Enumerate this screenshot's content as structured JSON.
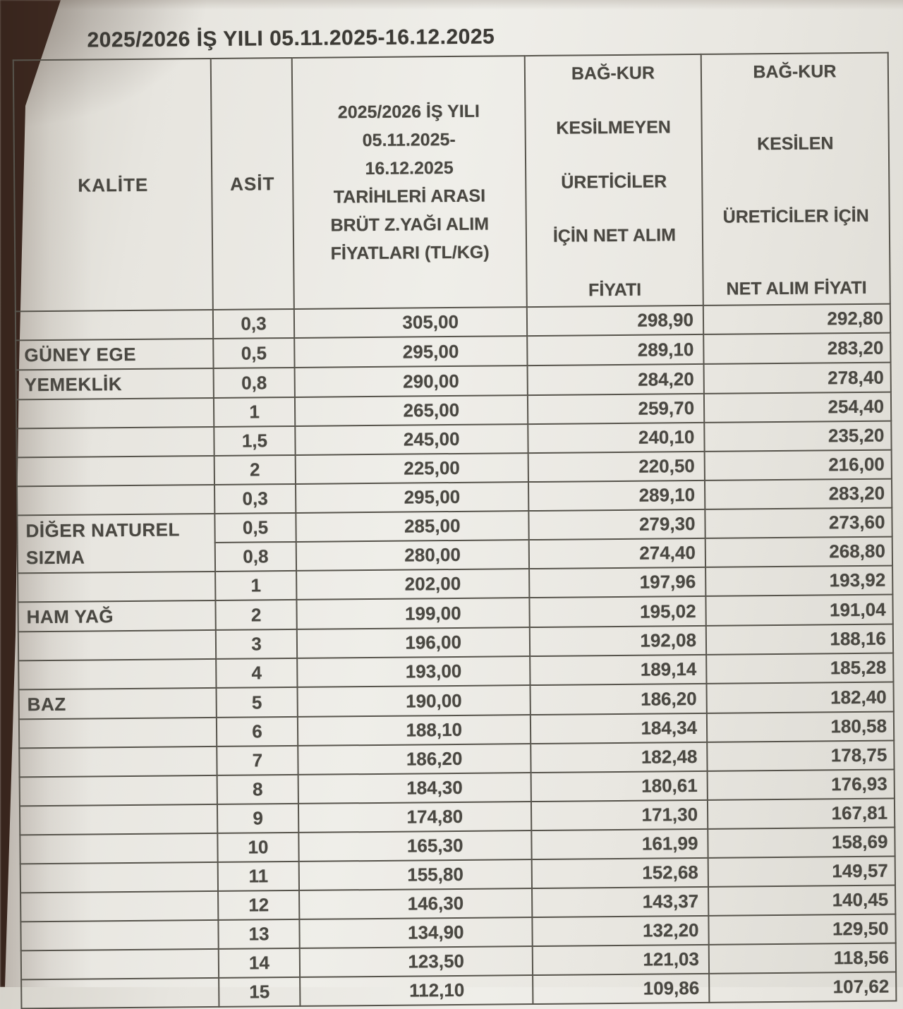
{
  "document": {
    "title": "2025/2026 İŞ YILI 05.11.2025-16.12.2025"
  },
  "table": {
    "headers": {
      "kalite": "KALİTE",
      "asit": "ASİT",
      "gross_lines": [
        "2025/2026 İŞ YILI",
        "05.11.2025-",
        "16.12.2025",
        "TARİHLERİ ARASI",
        "BRÜT Z.YAĞI ALIM",
        "FİYATLARI (TL/KG)"
      ],
      "net_kesilmeyen_lines": [
        "BAĞ-KUR",
        "KESİLMEYEN",
        "ÜRETİCİLER",
        "İÇİN NET ALIM",
        "FİYATI"
      ],
      "net_kesilen_lines": [
        "BAĞ-KUR",
        "KESİLEN",
        "ÜRETİCİLER İÇİN",
        "NET ALIM FİYATI"
      ]
    },
    "rows": [
      {
        "kalite": "",
        "asit": "0,3",
        "gross": "305,00",
        "net_kesilmeyen": "298,90",
        "net_kesilen": "292,80"
      },
      {
        "kalite": "GÜNEY EGE",
        "asit": "0,5",
        "gross": "295,00",
        "net_kesilmeyen": "289,10",
        "net_kesilen": "283,20"
      },
      {
        "kalite": "YEMEKLİK",
        "asit": "0,8",
        "gross": "290,00",
        "net_kesilmeyen": "284,20",
        "net_kesilen": "278,40"
      },
      {
        "kalite": "",
        "asit": "1",
        "gross": "265,00",
        "net_kesilmeyen": "259,70",
        "net_kesilen": "254,40"
      },
      {
        "kalite": "",
        "asit": "1,5",
        "gross": "245,00",
        "net_kesilmeyen": "240,10",
        "net_kesilen": "235,20"
      },
      {
        "kalite": "",
        "asit": "2",
        "gross": "225,00",
        "net_kesilmeyen": "220,50",
        "net_kesilen": "216,00"
      },
      {
        "kalite": "",
        "asit": "0,3",
        "gross": "295,00",
        "net_kesilmeyen": "289,10",
        "net_kesilen": "283,20"
      },
      {
        "kalite": "DİĞER NATUREL\nSIZMA",
        "kalite_rowspan": 2,
        "asit": "0,5",
        "gross": "285,00",
        "net_kesilmeyen": "279,30",
        "net_kesilen": "273,60"
      },
      {
        "kalite_skip": true,
        "asit": "0,8",
        "gross": "280,00",
        "net_kesilmeyen": "274,40",
        "net_kesilen": "268,80"
      },
      {
        "kalite": "",
        "asit": "1",
        "gross": "202,00",
        "net_kesilmeyen": "197,96",
        "net_kesilen": "193,92"
      },
      {
        "kalite": "HAM YAĞ",
        "asit": "2",
        "gross": "199,00",
        "net_kesilmeyen": "195,02",
        "net_kesilen": "191,04"
      },
      {
        "kalite": "",
        "asit": "3",
        "gross": "196,00",
        "net_kesilmeyen": "192,08",
        "net_kesilen": "188,16"
      },
      {
        "kalite": "",
        "asit": "4",
        "gross": "193,00",
        "net_kesilmeyen": "189,14",
        "net_kesilen": "185,28"
      },
      {
        "kalite": "BAZ",
        "asit": "5",
        "gross": "190,00",
        "net_kesilmeyen": "186,20",
        "net_kesilen": "182,40"
      },
      {
        "kalite": "",
        "asit": "6",
        "gross": "188,10",
        "net_kesilmeyen": "184,34",
        "net_kesilen": "180,58"
      },
      {
        "kalite": "",
        "asit": "7",
        "gross": "186,20",
        "net_kesilmeyen": "182,48",
        "net_kesilen": "178,75"
      },
      {
        "kalite": "",
        "asit": "8",
        "gross": "184,30",
        "net_kesilmeyen": "180,61",
        "net_kesilen": "176,93"
      },
      {
        "kalite": "",
        "asit": "9",
        "gross": "174,80",
        "net_kesilmeyen": "171,30",
        "net_kesilen": "167,81"
      },
      {
        "kalite": "",
        "asit": "10",
        "gross": "165,30",
        "net_kesilmeyen": "161,99",
        "net_kesilen": "158,69"
      },
      {
        "kalite": "",
        "asit": "11",
        "gross": "155,80",
        "net_kesilmeyen": "152,68",
        "net_kesilen": "149,57"
      },
      {
        "kalite": "",
        "asit": "12",
        "gross": "146,30",
        "net_kesilmeyen": "143,37",
        "net_kesilen": "140,45"
      },
      {
        "kalite": "",
        "asit": "13",
        "gross": "134,90",
        "net_kesilmeyen": "132,20",
        "net_kesilen": "129,50"
      },
      {
        "kalite": "",
        "asit": "14",
        "gross": "123,50",
        "net_kesilmeyen": "121,03",
        "net_kesilen": "118,56"
      },
      {
        "kalite": "",
        "asit": "15",
        "gross": "112,10",
        "net_kesilmeyen": "109,86",
        "net_kesilen": "107,62"
      }
    ]
  },
  "colors": {
    "paper": "#efeee9",
    "ink": "#4a4842",
    "table_border": "#57544c",
    "wood_edge": "#5f4234"
  }
}
